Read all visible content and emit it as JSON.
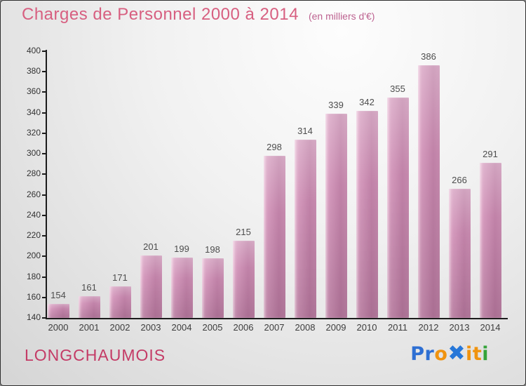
{
  "title": "Charges de Personnel 2000 à 2014",
  "subtitle": "(en milliers d'€)",
  "footer": {
    "commune": "LONGCHAUMOIS",
    "logo_text": "Proxiti",
    "logo_letters": [
      {
        "ch": "P",
        "color": "#2e6fd3"
      },
      {
        "ch": "r",
        "color": "#2e6fd3"
      },
      {
        "ch": "o",
        "color": "#f0930f"
      },
      {
        "ch": "✖",
        "color": "#2777d8",
        "big": true
      },
      {
        "ch": "i",
        "color": "#f0930f"
      },
      {
        "ch": "t",
        "color": "#f0930f"
      },
      {
        "ch": "i",
        "color": "#35a43a"
      }
    ]
  },
  "colors": {
    "title": "#d75f80",
    "subtitle": "#bd6290",
    "commune": "#c43b66",
    "bar_light": "#e6b4d0",
    "bar_dark": "#bd7ba3",
    "axis": "#1c1c1c",
    "value_label": "#4d4d4d",
    "tick_label": "#333333"
  },
  "chart_data": {
    "type": "bar",
    "title": "Charges de Personnel 2000 à 2014",
    "subtitle": "(en milliers d'€)",
    "categories": [
      "2000",
      "2001",
      "2002",
      "2003",
      "2004",
      "2005",
      "2006",
      "2007",
      "2008",
      "2009",
      "2010",
      "2011",
      "2012",
      "2013",
      "2014"
    ],
    "values": [
      154,
      161,
      171,
      201,
      199,
      198,
      215,
      298,
      314,
      339,
      342,
      355,
      386,
      266,
      291
    ],
    "xlabel": "",
    "ylabel": "",
    "ylim": [
      140,
      400
    ],
    "ytick_step": 20,
    "grid": false,
    "legend_position": "none"
  }
}
